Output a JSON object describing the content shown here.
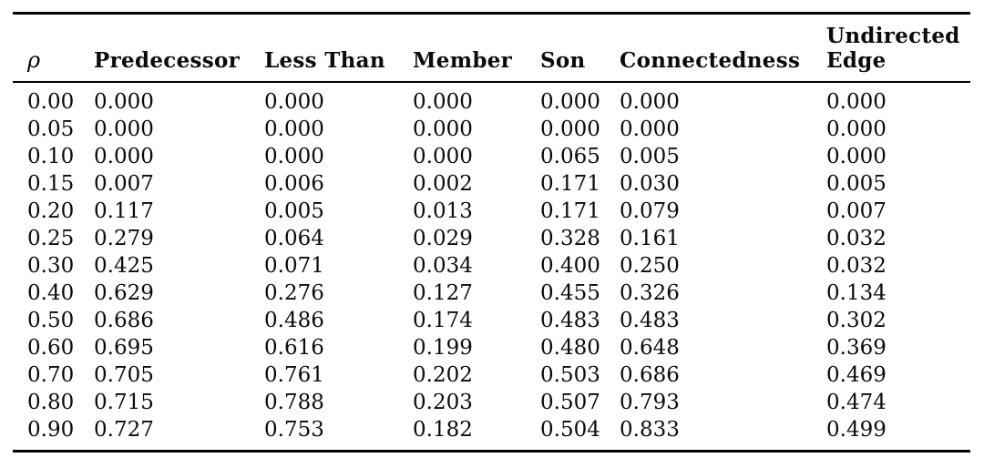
{
  "table": {
    "caption": "",
    "columns": [
      "ρ",
      "Predecessor",
      "Less Than",
      "Member",
      "Son",
      "Connectedness",
      "Undirected Edge"
    ],
    "rows": [
      [
        "0.00",
        "0.000",
        "0.000",
        "0.000",
        "0.000",
        "0.000",
        "0.000"
      ],
      [
        "0.05",
        "0.000",
        "0.000",
        "0.000",
        "0.000",
        "0.000",
        "0.000"
      ],
      [
        "0.10",
        "0.000",
        "0.000",
        "0.000",
        "0.065",
        "0.005",
        "0.000"
      ],
      [
        "0.15",
        "0.007",
        "0.006",
        "0.002",
        "0.171",
        "0.030",
        "0.005"
      ],
      [
        "0.20",
        "0.117",
        "0.005",
        "0.013",
        "0.171",
        "0.079",
        "0.007"
      ],
      [
        "0.25",
        "0.279",
        "0.064",
        "0.029",
        "0.328",
        "0.161",
        "0.032"
      ],
      [
        "0.30",
        "0.425",
        "0.071",
        "0.034",
        "0.400",
        "0.250",
        "0.032"
      ],
      [
        "0.40",
        "0.629",
        "0.276",
        "0.127",
        "0.455",
        "0.326",
        "0.134"
      ],
      [
        "0.50",
        "0.686",
        "0.486",
        "0.174",
        "0.483",
        "0.483",
        "0.302"
      ],
      [
        "0.60",
        "0.695",
        "0.616",
        "0.199",
        "0.480",
        "0.648",
        "0.369"
      ],
      [
        "0.70",
        "0.705",
        "0.761",
        "0.202",
        "0.503",
        "0.686",
        "0.469"
      ],
      [
        "0.80",
        "0.715",
        "0.788",
        "0.203",
        "0.507",
        "0.793",
        "0.474"
      ],
      [
        "0.90",
        "0.727",
        "0.753",
        "0.182",
        "0.504",
        "0.833",
        "0.499"
      ]
    ],
    "text_color": "#0b0b0b",
    "rule_color": "#000000",
    "background_color": "#ffffff"
  }
}
